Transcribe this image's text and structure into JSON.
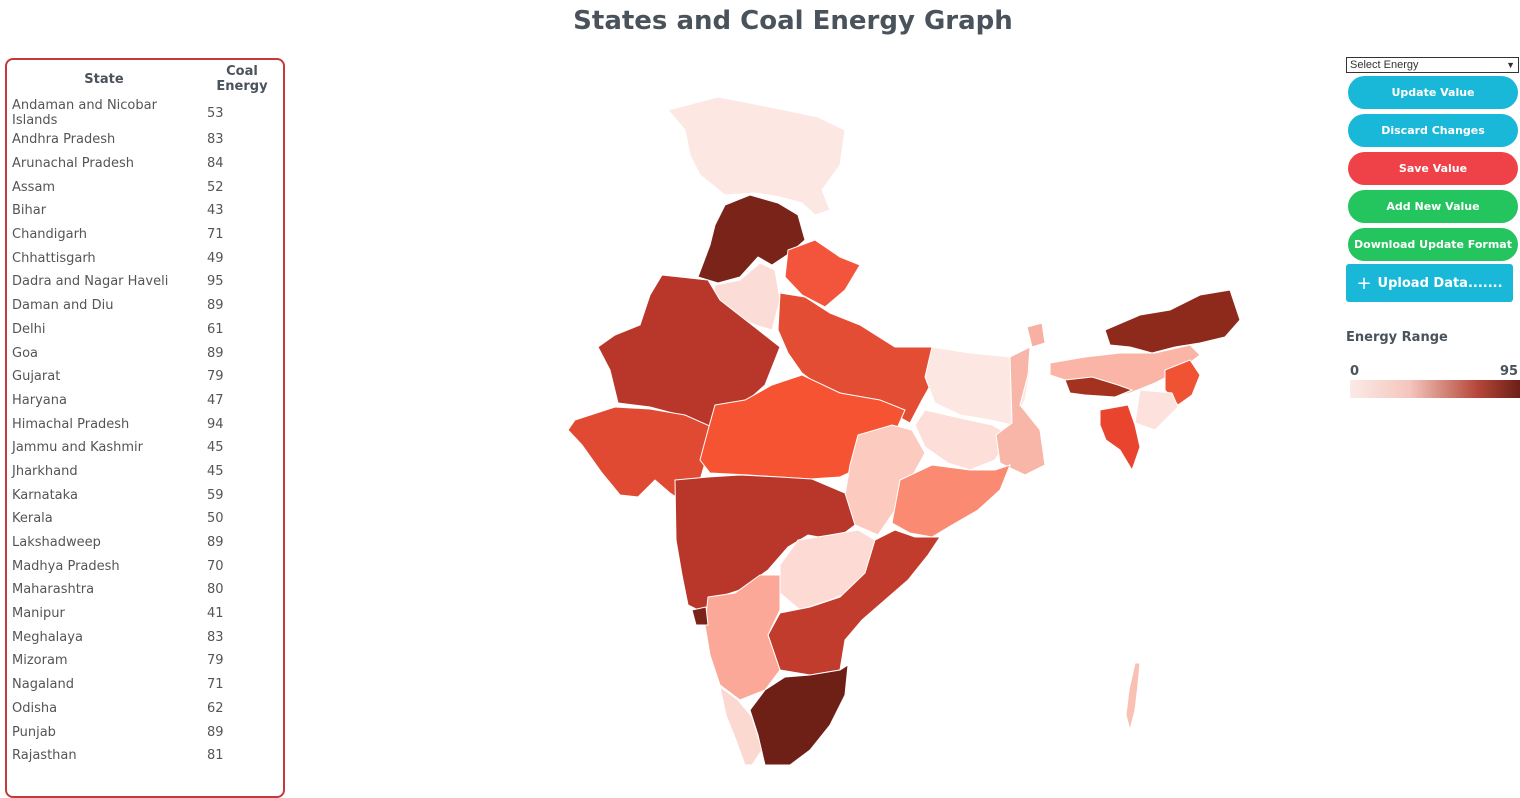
{
  "title": "States and Coal Energy Graph",
  "table": {
    "headers": {
      "state": "State",
      "energy": "Coal Energy"
    },
    "rows": [
      {
        "state": "Andaman and Nicobar Islands",
        "value": "53"
      },
      {
        "state": "Andhra Pradesh",
        "value": "83"
      },
      {
        "state": "Arunachal Pradesh",
        "value": "84"
      },
      {
        "state": "Assam",
        "value": "52"
      },
      {
        "state": "Bihar",
        "value": "43"
      },
      {
        "state": "Chandigarh",
        "value": "71"
      },
      {
        "state": "Chhattisgarh",
        "value": "49"
      },
      {
        "state": "Dadra and Nagar Haveli",
        "value": "95"
      },
      {
        "state": "Daman and Diu",
        "value": "89"
      },
      {
        "state": "Delhi",
        "value": "61"
      },
      {
        "state": "Goa",
        "value": "89"
      },
      {
        "state": "Gujarat",
        "value": "79"
      },
      {
        "state": "Haryana",
        "value": "47"
      },
      {
        "state": "Himachal Pradesh",
        "value": "94"
      },
      {
        "state": "Jammu and Kashmir",
        "value": "45"
      },
      {
        "state": "Jharkhand",
        "value": "45"
      },
      {
        "state": "Karnataka",
        "value": "59"
      },
      {
        "state": "Kerala",
        "value": "50"
      },
      {
        "state": "Lakshadweep",
        "value": "89"
      },
      {
        "state": "Madhya Pradesh",
        "value": "70"
      },
      {
        "state": "Maharashtra",
        "value": "80"
      },
      {
        "state": "Manipur",
        "value": "41"
      },
      {
        "state": "Meghalaya",
        "value": "83"
      },
      {
        "state": "Mizoram",
        "value": "79"
      },
      {
        "state": "Nagaland",
        "value": "71"
      },
      {
        "state": "Odisha",
        "value": "62"
      },
      {
        "state": "Punjab",
        "value": "89"
      },
      {
        "state": "Rajasthan",
        "value": "81"
      }
    ]
  },
  "controls": {
    "select_label": "Select Energy",
    "update": "Update Value",
    "discard": "Discard Changes",
    "save": "Save Value",
    "add": "Add New Value",
    "download": "Download Update Format",
    "upload": "Upload Data.......",
    "upload_icon": "plus-icon"
  },
  "legend": {
    "title": "Energy Range",
    "min": "0",
    "max": "95"
  },
  "colors": {
    "cyan": "#19b8d8",
    "red": "#ef4148",
    "green": "#24c45e",
    "table_border": "#c6393a",
    "scale_low": "#fbeae8",
    "scale_high": "#6c1f17"
  }
}
